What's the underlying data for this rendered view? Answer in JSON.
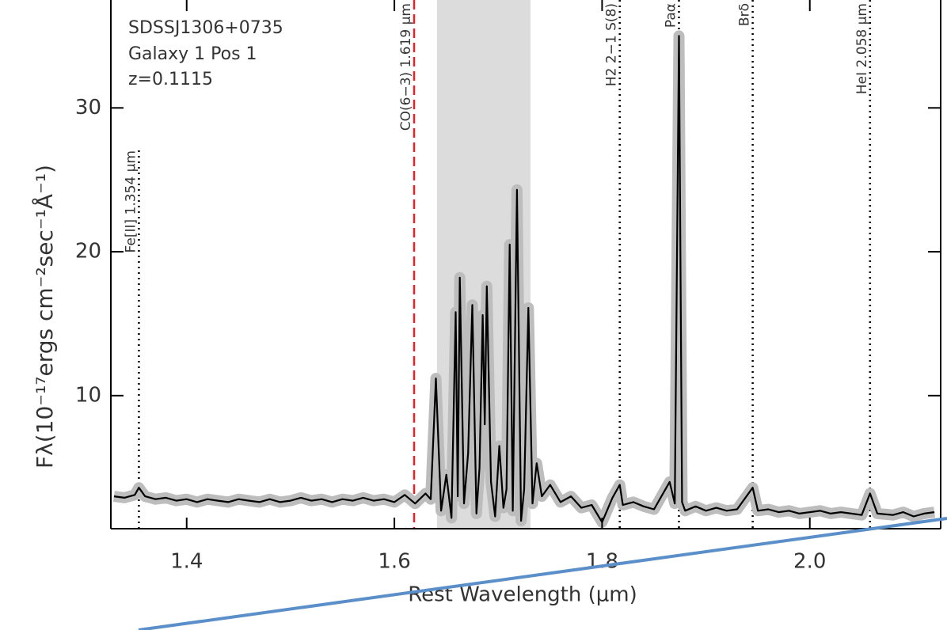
{
  "chart_data": {
    "type": "line",
    "x_label": "Rest Wavelength (μm)",
    "y_label": "Fλ(10⁻¹⁷ergs cm⁻²sec⁻¹Å⁻¹)",
    "annotations": [
      "SDSSJ1306+0735",
      "Galaxy 1 Pos 1",
      "z=0.1115"
    ],
    "color": "#000000",
    "xlim": [
      1.327,
      2.126
    ],
    "ylim": [
      0.75,
      37.5
    ],
    "xticks": [
      1.4,
      1.6,
      1.8,
      {
        "value": 2.0,
        "label": "2.0"
      }
    ],
    "yticks": [
      10,
      20,
      30
    ],
    "shaded_region": [
      1.641,
      1.731
    ],
    "line_markers": [
      {
        "x": 1.354,
        "label": "Fe[II] 1.354 μm",
        "color": "#000000",
        "style": "dotted"
      },
      {
        "x": 1.619,
        "label": "CO(6−3) 1.619 μm",
        "color": "#e8202a",
        "style": "dashed"
      },
      {
        "x": 1.817,
        "label": "H2 2−1 S(8)",
        "color": "#000000",
        "style": "dotted"
      },
      {
        "x": 1.874,
        "label": "Paα",
        "color": "#000000",
        "style": "dotted"
      },
      {
        "x": 1.945,
        "label": "Brδ",
        "color": "#000000",
        "style": "dotted"
      },
      {
        "x": 2.058,
        "label": "HeI 2.058 μm",
        "color": "#000000",
        "style": "dotted"
      }
    ],
    "x": [
      1.33,
      1.34,
      1.35,
      1.354,
      1.36,
      1.37,
      1.38,
      1.39,
      1.4,
      1.41,
      1.42,
      1.43,
      1.44,
      1.45,
      1.46,
      1.47,
      1.48,
      1.49,
      1.5,
      1.51,
      1.52,
      1.53,
      1.54,
      1.55,
      1.56,
      1.57,
      1.58,
      1.59,
      1.6,
      1.61,
      1.62,
      1.63,
      1.635,
      1.64,
      1.645,
      1.65,
      1.655,
      1.659,
      1.661,
      1.663,
      1.667,
      1.671,
      1.675,
      1.679,
      1.682,
      1.685,
      1.687,
      1.689,
      1.693,
      1.697,
      1.701,
      1.705,
      1.708,
      1.711,
      1.714,
      1.718,
      1.722,
      1.725,
      1.729,
      1.733,
      1.737,
      1.742,
      1.75,
      1.76,
      1.77,
      1.78,
      1.79,
      1.8,
      1.81,
      1.817,
      1.82,
      1.83,
      1.84,
      1.85,
      1.865,
      1.87,
      1.874,
      1.877,
      1.88,
      1.89,
      1.9,
      1.91,
      1.92,
      1.93,
      1.945,
      1.95,
      1.96,
      1.97,
      1.98,
      1.99,
      2.0,
      2.01,
      2.02,
      2.03,
      2.04,
      2.05,
      2.058,
      2.065,
      2.08,
      2.09,
      2.1,
      2.11,
      2.12
    ],
    "values": [
      3.0,
      2.9,
      3.1,
      3.6,
      3.0,
      2.8,
      2.9,
      2.7,
      2.8,
      2.6,
      2.8,
      2.7,
      2.6,
      2.8,
      2.7,
      2.6,
      2.8,
      2.6,
      2.7,
      2.9,
      2.7,
      2.8,
      2.6,
      2.8,
      2.7,
      2.9,
      2.7,
      2.8,
      2.6,
      3.1,
      2.5,
      3.2,
      2.8,
      11.2,
      2.0,
      4.5,
      1.5,
      15.8,
      3.0,
      18.2,
      2.5,
      6.0,
      16.3,
      1.8,
      5.0,
      15.6,
      8.0,
      17.6,
      4.0,
      1.6,
      6.5,
      2.2,
      3.5,
      20.5,
      2.0,
      24.3,
      1.3,
      3.5,
      16.1,
      2.5,
      5.3,
      3.0,
      3.8,
      2.6,
      3.0,
      2.2,
      2.4,
      1.2,
      2.9,
      3.8,
      2.4,
      2.6,
      2.3,
      2.1,
      4.0,
      2.5,
      35.0,
      2.6,
      2.0,
      2.3,
      2.0,
      2.2,
      2.0,
      2.1,
      3.6,
      2.0,
      2.1,
      1.9,
      2.0,
      1.8,
      1.9,
      2.0,
      1.8,
      1.9,
      1.8,
      1.7,
      3.2,
      1.8,
      1.7,
      1.9,
      1.6,
      1.8,
      1.9
    ]
  }
}
